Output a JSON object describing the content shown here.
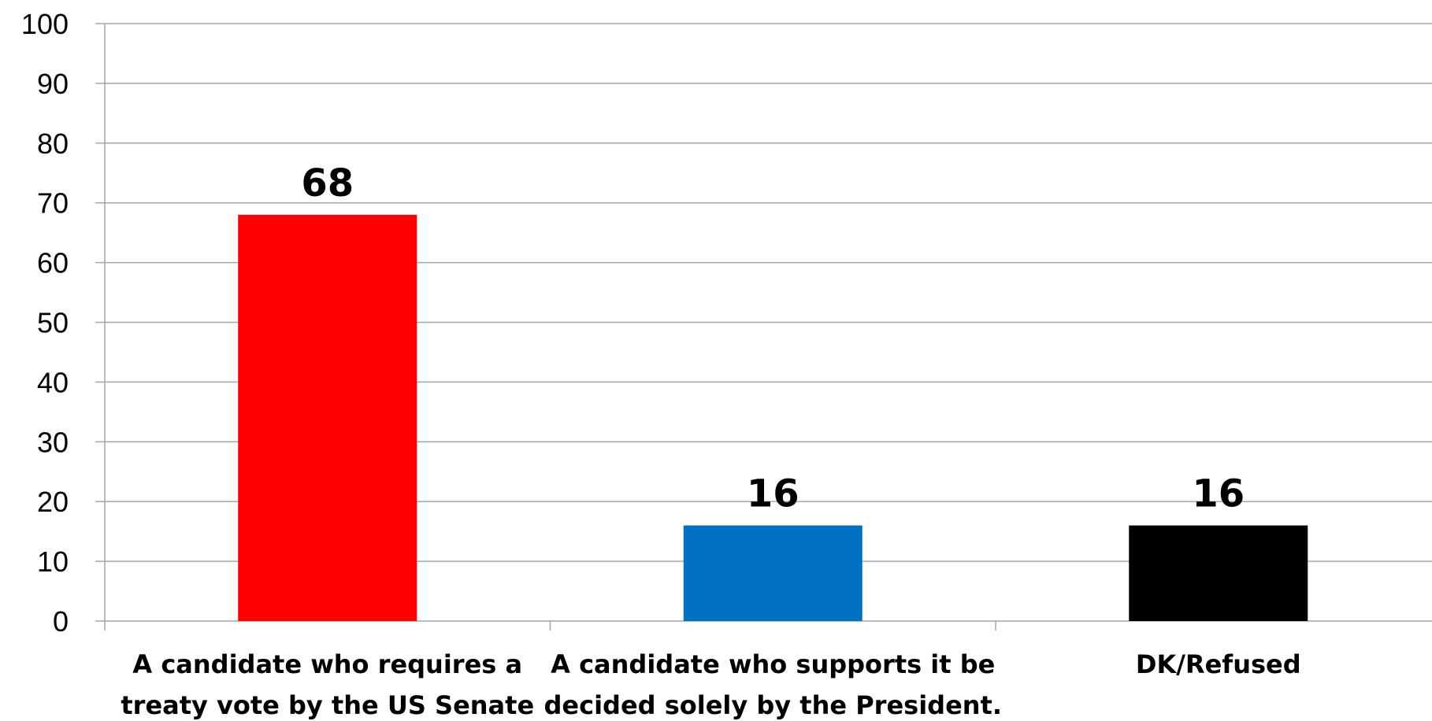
{
  "chart_data": {
    "type": "bar",
    "categories": [
      [
        "A candidate who requires a",
        "treaty vote by the US Senate"
      ],
      [
        "A candidate who supports it be",
        "decided solely by the President."
      ],
      [
        "DK/Refused"
      ]
    ],
    "values": [
      68,
      16,
      16
    ],
    "colors": [
      "#ff0000",
      "#0070c0",
      "#000000"
    ],
    "ylim": [
      0,
      100
    ],
    "yticks": [
      0,
      10,
      20,
      30,
      40,
      50,
      60,
      70,
      80,
      90,
      100
    ],
    "title": "",
    "xlabel": "",
    "ylabel": "",
    "grid": true,
    "data_labels": true,
    "legend": "none"
  }
}
